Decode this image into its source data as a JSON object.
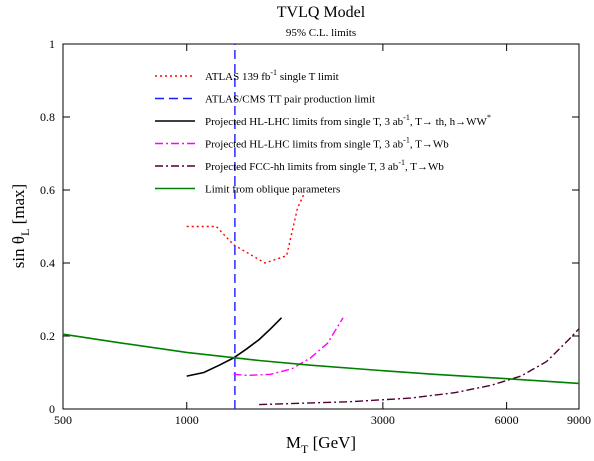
{
  "chart_data": {
    "type": "line",
    "title": "TVLQ  Model",
    "subtitle": "95% C.L. limits",
    "xlabel": {
      "main": "M",
      "sub": "T",
      "rest": " [GeV]"
    },
    "ylabel": {
      "main": "sin θ",
      "sub": "L",
      "rest": " [max]"
    },
    "xscale": "log",
    "xlim": [
      500,
      9000
    ],
    "ylim": [
      0,
      1
    ],
    "x_ticks": [
      500,
      1000,
      3000,
      6000,
      9000
    ],
    "x_tick_labels": [
      "500",
      "1000",
      "3000",
      "6000",
      "9000"
    ],
    "y_ticks": [
      0,
      0.2,
      0.4,
      0.6,
      0.8,
      1
    ],
    "y_tick_labels": [
      "0",
      "0.2",
      "0.4",
      "0.6",
      "0.8",
      "1"
    ],
    "grid": false,
    "legend_position": "top",
    "series": [
      {
        "name": "ATLAS 139 fb-1 single T limit",
        "legend": {
          "parts": [
            {
              "t": "ATLAS 139 fb"
            },
            {
              "t": "-1",
              "sup": true
            },
            {
              "t": " single T limit"
            }
          ]
        },
        "color": "#ff0000",
        "dash": "dotted",
        "x": [
          1000,
          1180,
          1300,
          1550,
          1750,
          1860,
          1930
        ],
        "y": [
          0.5,
          0.5,
          0.45,
          0.4,
          0.42,
          0.55,
          0.59
        ]
      },
      {
        "name": "ATLAS/CMS TT pair production limit",
        "legend": {
          "parts": [
            {
              "t": "ATLAS/CMS TT pair production limit"
            }
          ]
        },
        "color": "#1a1aff",
        "dash": "dashed",
        "x": [
          1310,
          1310
        ],
        "y": [
          0,
          1
        ]
      },
      {
        "name": "Projected HL-LHC limits from single T, 3 ab-1, T→ th, h→WW*",
        "legend": {
          "parts": [
            {
              "t": "Projected HL-LHC limits from single T, 3 ab"
            },
            {
              "t": "-1",
              "sup": true
            },
            {
              "t": ", T→ th, h→WW"
            },
            {
              "t": "*",
              "sup": true
            }
          ]
        },
        "color": "#000000",
        "dash": "solid",
        "x": [
          1000,
          1100,
          1200,
          1300,
          1400,
          1500,
          1600,
          1700
        ],
        "y": [
          0.09,
          0.1,
          0.12,
          0.14,
          0.165,
          0.19,
          0.22,
          0.25
        ]
      },
      {
        "name": "Projected HL-LHC limits from single T, 3 ab-1, T→Wb",
        "legend": {
          "parts": [
            {
              "t": "Projected HL-LHC limits from single T, 3 ab"
            },
            {
              "t": "-1",
              "sup": true
            },
            {
              "t": ", T→Wb"
            }
          ]
        },
        "color": "#ff00ff",
        "dash": "dashdot",
        "x": [
          1300,
          1400,
          1600,
          1800,
          2000,
          2200,
          2400
        ],
        "y": [
          0.095,
          0.092,
          0.095,
          0.11,
          0.14,
          0.18,
          0.25
        ]
      },
      {
        "name": "Projected FCC-hh limits from single T, 3 ab-1, T→Wb",
        "legend": {
          "parts": [
            {
              "t": "Projected FCC-hh limits from single T, 3 ab"
            },
            {
              "t": "-1",
              "sup": true
            },
            {
              "t": ", T→Wb"
            }
          ]
        },
        "color": "#4d0033",
        "dash": "dashdot",
        "x": [
          1500,
          2500,
          3500,
          4500,
          5500,
          6500,
          7500,
          8500,
          9000
        ],
        "y": [
          0.012,
          0.02,
          0.03,
          0.045,
          0.065,
          0.09,
          0.13,
          0.19,
          0.22
        ]
      },
      {
        "name": "Limit from oblique parameters",
        "legend": {
          "parts": [
            {
              "t": "Limit from oblique parameters"
            }
          ]
        },
        "color": "#008000",
        "dash": "solid",
        "x": [
          500,
          700,
          1000,
          1500,
          2000,
          3000,
          4000,
          6000,
          9000
        ],
        "y": [
          0.205,
          0.18,
          0.155,
          0.133,
          0.12,
          0.105,
          0.095,
          0.083,
          0.07
        ]
      }
    ]
  }
}
